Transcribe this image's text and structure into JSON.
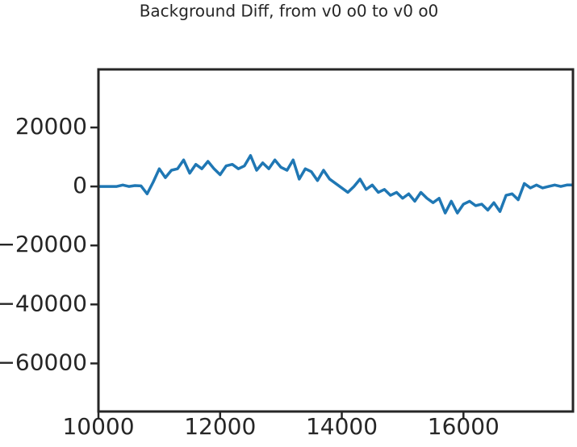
{
  "chart_data": {
    "type": "line",
    "title": "Background Diff, from v0 o0 to v0 o0",
    "x": [
      10000,
      10100,
      10200,
      10300,
      10400,
      10500,
      10600,
      10700,
      10800,
      10900,
      11000,
      11100,
      11200,
      11300,
      11400,
      11500,
      11600,
      11700,
      11800,
      11900,
      12000,
      12100,
      12200,
      12300,
      12400,
      12500,
      12600,
      12700,
      12800,
      12900,
      13000,
      13100,
      13200,
      13300,
      13400,
      13500,
      13600,
      13700,
      13800,
      13900,
      14000,
      14100,
      14200,
      14300,
      14400,
      14500,
      14600,
      14700,
      14800,
      14900,
      15000,
      15100,
      15200,
      15300,
      15400,
      15500,
      15600,
      15700,
      15800,
      15900,
      16000,
      16100,
      16200,
      16300,
      16400,
      16500,
      16600,
      16700,
      16800,
      16900,
      17000,
      17100,
      17200,
      17300,
      17400,
      17500,
      17600,
      17700,
      17800
    ],
    "series": [
      {
        "color": "#1f77b4",
        "values": [
          0,
          0,
          0,
          0,
          500,
          0,
          300,
          200,
          -2500,
          1500,
          6000,
          3000,
          5500,
          6000,
          9000,
          4500,
          7500,
          6000,
          8500,
          6000,
          4000,
          7000,
          7500,
          6000,
          7000,
          10500,
          5500,
          8000,
          6000,
          9000,
          6500,
          5500,
          9000,
          2500,
          6000,
          5000,
          2000,
          5500,
          2500,
          1000,
          -500,
          -2000,
          0,
          2500,
          -1000,
          500,
          -2000,
          -1000,
          -3000,
          -2000,
          -4000,
          -2500,
          -5000,
          -2000,
          -4000,
          -5500,
          -4000,
          -9000,
          -5000,
          -9000,
          -6000,
          -5000,
          -6500,
          -6000,
          -8000,
          -5500,
          -8500,
          -3000,
          -2500,
          -4500,
          1000,
          -500,
          500,
          -500,
          0,
          500,
          0,
          500,
          500
        ]
      }
    ],
    "xlim": [
      10000,
      17800
    ],
    "ylim": [
      -76300,
      39700
    ],
    "xticks": [
      10000,
      12000,
      14000,
      16000
    ],
    "yticks": [
      {
        "value": -60000,
        "label": "−60000"
      },
      {
        "value": -40000,
        "label": "−40000"
      },
      {
        "value": -20000,
        "label": "−20000"
      },
      0,
      20000
    ]
  }
}
